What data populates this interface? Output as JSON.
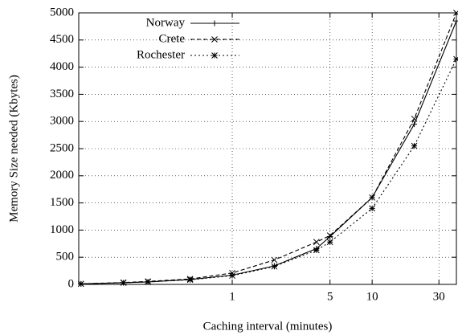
{
  "chart_data": {
    "type": "line",
    "x_label": "Caching interval (minutes)",
    "y_label": "Memory Size needed (Kbytes)",
    "x_log": true,
    "grid": true,
    "legend": "top-left",
    "xlim": [
      0.08,
      40
    ],
    "xticks": [
      1,
      5,
      10,
      30
    ],
    "ylim": [
      0,
      5000
    ],
    "yticks": [
      0,
      500,
      1000,
      1500,
      2000,
      2500,
      3000,
      3500,
      4000,
      4500,
      5000
    ],
    "x": [
      0.083,
      0.167,
      0.25,
      0.5,
      1,
      2,
      4,
      5,
      10,
      20,
      40
    ],
    "series": [
      {
        "name": "Norway",
        "color": "#000000",
        "dash": "solid",
        "marker": "plus",
        "values": [
          10,
          30,
          45,
          90,
          170,
          340,
          660,
          880,
          1600,
          2950,
          4850
        ]
      },
      {
        "name": "Crete",
        "color": "#000000",
        "dash": "dashed",
        "marker": "cross",
        "values": [
          10,
          35,
          55,
          100,
          210,
          450,
          780,
          900,
          1600,
          3050,
          5000
        ]
      },
      {
        "name": "Rochester",
        "color": "#000000",
        "dash": "dotted",
        "marker": "star",
        "values": [
          10,
          30,
          45,
          85,
          160,
          330,
          630,
          780,
          1400,
          2550,
          4150
        ]
      }
    ]
  }
}
